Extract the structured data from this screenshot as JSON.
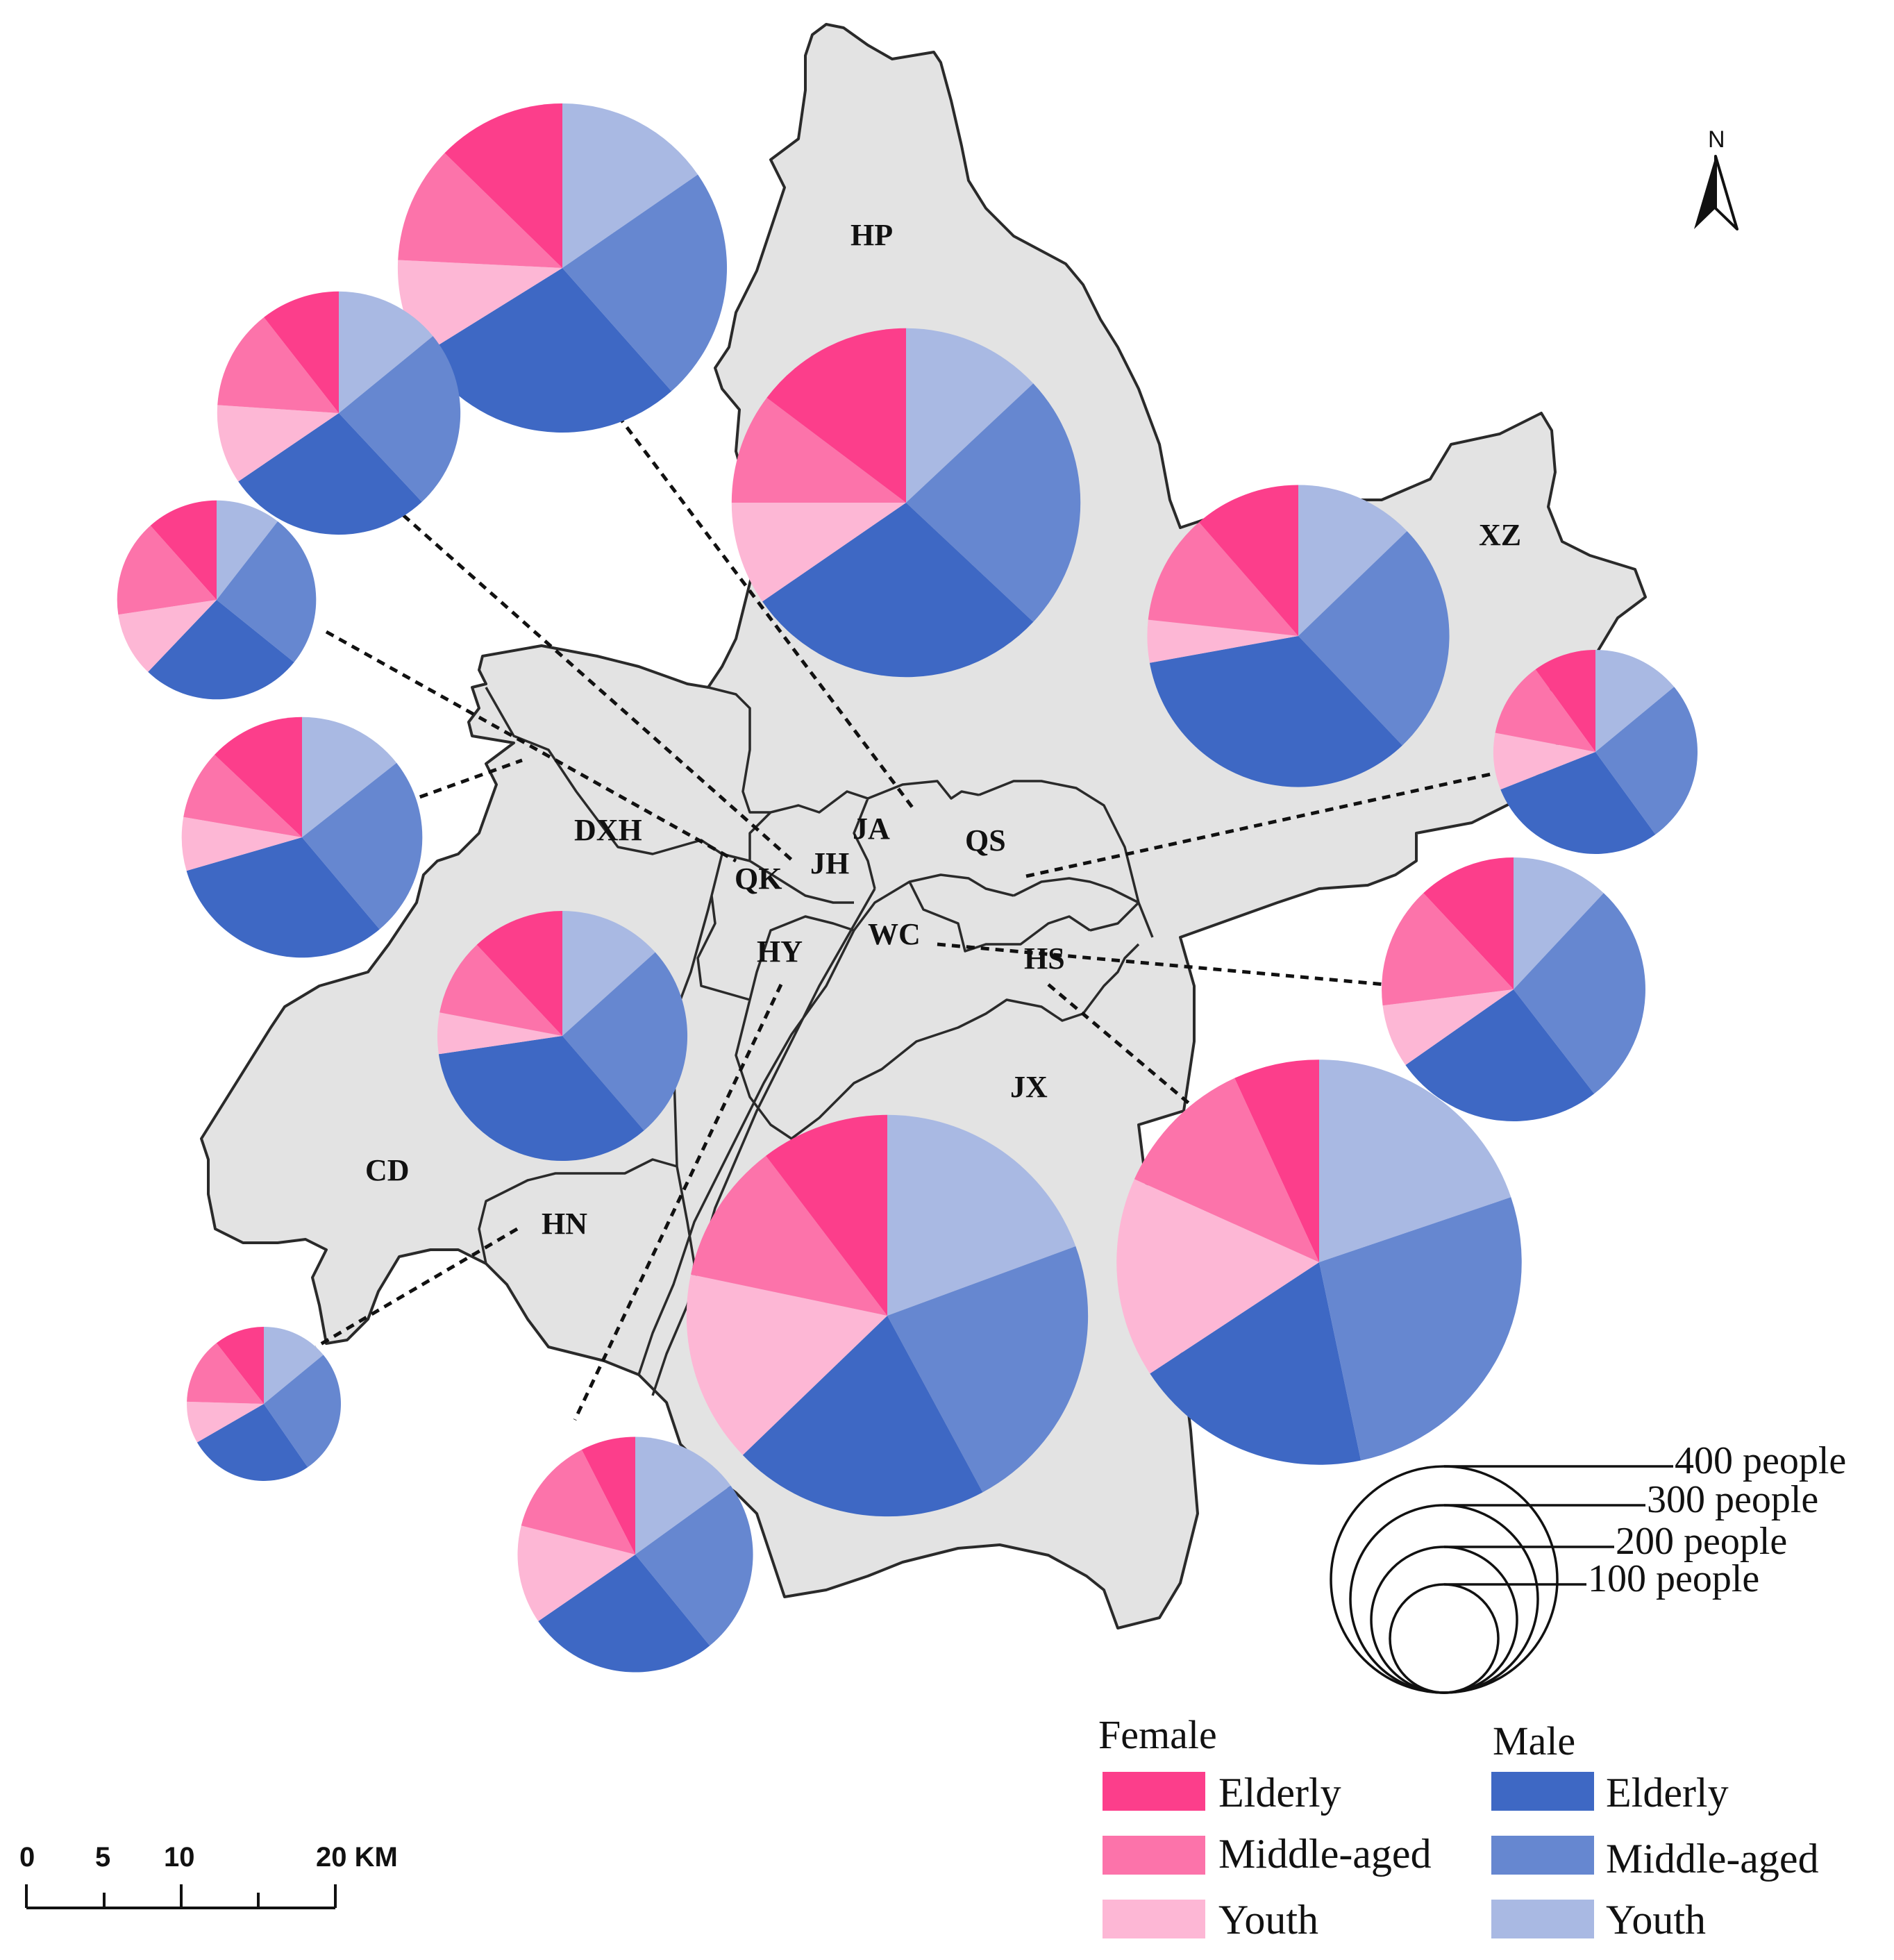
{
  "colors": {
    "map_fill": "#e3e3e3",
    "map_stroke": "#2a2a2a",
    "female_elderly": "#fc3e8b",
    "female_middle_aged": "#fc73aa",
    "female_youth": "#fdb7d5",
    "male_elderly": "#3e68c4",
    "male_middle_aged": "#6687d0",
    "male_youth": "#a9b9e3"
  },
  "north_arrow": {
    "label": "N",
    "icon": "north-arrow-icon"
  },
  "districts": [
    "HP",
    "XZ",
    "DXH",
    "JA",
    "QS",
    "QK",
    "JH",
    "WC",
    "HY",
    "HS",
    "JX",
    "CD",
    "HN"
  ],
  "scale_bar": {
    "ticks": [
      "0",
      "5",
      "10",
      "20 KM"
    ]
  },
  "size_legend": {
    "labels": [
      "400 people",
      "300 people",
      "200 people",
      "100 people"
    ]
  },
  "legend": {
    "female": {
      "heading": "Female",
      "items": [
        "Elderly",
        "Middle-aged",
        "Youth"
      ]
    },
    "male": {
      "heading": "Male",
      "items": [
        "Elderly",
        "Middle-aged",
        "Youth"
      ]
    }
  },
  "chart_data": {
    "type": "pie",
    "legend_placement": "bottom-right",
    "categories_clockwise_from_top": [
      "Male Youth",
      "Male Middle-aged",
      "Male Elderly",
      "Female Youth",
      "Female Middle-aged",
      "Female Elderly"
    ],
    "districts": [
      {
        "district": "HP",
        "values": [
          38,
          70,
          83,
          28,
          30,
          43
        ]
      },
      {
        "district": "XZ",
        "values": [
          28,
          55,
          75,
          10,
          26,
          25
        ]
      },
      {
        "district": "DXH",
        "values": [
          20,
          34,
          44,
          10,
          13,
          18
        ]
      },
      {
        "district": "HY",
        "values": [
          20,
          38,
          51,
          8,
          15,
          18
        ]
      },
      {
        "district": "JX",
        "values": [
          75,
          88,
          80,
          60,
          44,
          40
        ]
      },
      {
        "district": "HS",
        "values": [
          78,
          106,
          75,
          63,
          45,
          27
        ]
      },
      {
        "district": "WC",
        "values": [
          40,
          60,
          72,
          25,
          30,
          33
        ]
      },
      {
        "district": "QS",
        "values": [
          14,
          26,
          29,
          9,
          12,
          10
        ]
      },
      {
        "district": "JA",
        "values": [
          20,
          46,
          43,
          13,
          25,
          20
        ]
      },
      {
        "district": "JH",
        "values": [
          10,
          24,
          25,
          10,
          15,
          11
        ]
      },
      {
        "district": "QK",
        "values": [
          20,
          34,
          39,
          15,
          19,
          15
        ]
      },
      {
        "district": "CD",
        "values": [
          8,
          15,
          15,
          5,
          8,
          6
        ]
      },
      {
        "district": "HN",
        "values": [
          20,
          32,
          35,
          18,
          18,
          10
        ]
      }
    ]
  }
}
